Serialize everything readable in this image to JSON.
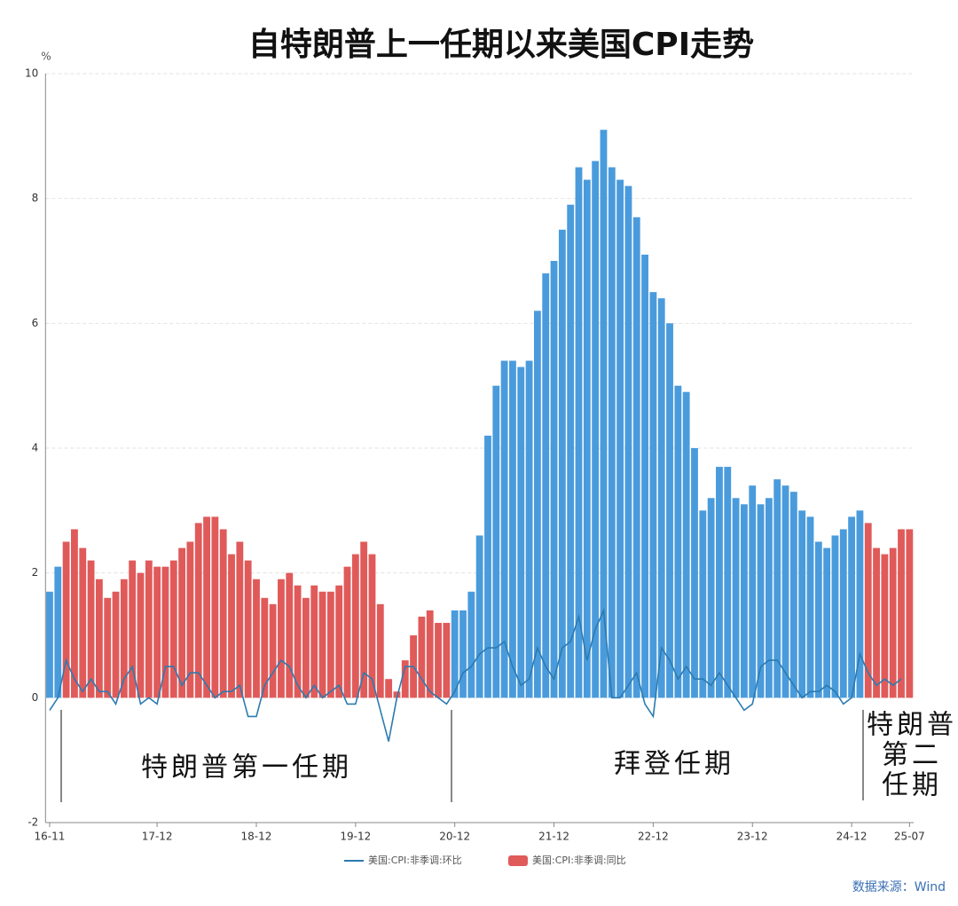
{
  "chart_data": {
    "type": "bar",
    "title": "自特朗普上一任期以来美国CPI走势",
    "y_unit": "%",
    "categories": [
      "16-11",
      null,
      null,
      null,
      null,
      null,
      null,
      null,
      null,
      null,
      null,
      null,
      null,
      "17-12",
      null,
      null,
      null,
      null,
      null,
      null,
      null,
      null,
      null,
      null,
      null,
      "18-12",
      null,
      null,
      null,
      null,
      null,
      null,
      null,
      null,
      null,
      null,
      null,
      "19-12",
      null,
      null,
      null,
      null,
      null,
      null,
      null,
      null,
      null,
      null,
      null,
      "20-12",
      null,
      null,
      null,
      null,
      null,
      null,
      null,
      null,
      null,
      null,
      null,
      "21-12",
      null,
      null,
      null,
      null,
      null,
      null,
      null,
      null,
      null,
      null,
      null,
      "22-12",
      null,
      null,
      null,
      null,
      null,
      null,
      null,
      null,
      null,
      null,
      null,
      "23-12",
      null,
      null,
      null,
      null,
      null,
      null,
      null,
      null,
      null,
      null,
      null,
      "24-12",
      null,
      null,
      null,
      null,
      null,
      null,
      "25-07"
    ],
    "series": [
      {
        "name": "美国:CPI:非季调:环比",
        "type": "line",
        "color": "#2b7bb0",
        "values": [
          -0.2,
          0.0,
          0.6,
          0.3,
          0.1,
          0.3,
          0.1,
          0.1,
          -0.1,
          0.3,
          0.5,
          -0.1,
          0.0,
          -0.1,
          0.5,
          0.5,
          0.2,
          0.4,
          0.4,
          0.2,
          0.0,
          0.1,
          0.1,
          0.2,
          -0.3,
          -0.3,
          0.2,
          0.4,
          0.6,
          0.5,
          0.2,
          0.0,
          0.2,
          0.0,
          0.1,
          0.2,
          -0.1,
          -0.1,
          0.4,
          0.3,
          -0.2,
          -0.7,
          0.0,
          0.5,
          0.5,
          0.3,
          0.1,
          0.0,
          -0.1,
          0.1,
          0.4,
          0.5,
          0.7,
          0.8,
          0.8,
          0.9,
          0.5,
          0.2,
          0.3,
          0.8,
          0.5,
          0.3,
          0.8,
          0.9,
          1.3,
          0.6,
          1.1,
          1.4,
          0.0,
          0.0,
          0.2,
          0.4,
          -0.1,
          -0.3,
          0.8,
          0.6,
          0.3,
          0.5,
          0.3,
          0.3,
          0.2,
          0.4,
          0.2,
          0.0,
          -0.2,
          -0.1,
          0.5,
          0.6,
          0.6,
          0.4,
          0.2,
          0.0,
          0.1,
          0.1,
          0.2,
          0.1,
          -0.1,
          0.0,
          0.7,
          0.4,
          0.2,
          0.3,
          0.2,
          0.3,
          null
        ]
      },
      {
        "name": "美国:CPI:非季调:同比",
        "type": "bar",
        "color": "#e05a5a",
        "values": [
          1.7,
          2.1,
          2.5,
          2.7,
          2.4,
          2.2,
          1.9,
          1.6,
          1.7,
          1.9,
          2.2,
          2.0,
          2.2,
          2.1,
          2.1,
          2.2,
          2.4,
          2.5,
          2.8,
          2.9,
          2.9,
          2.7,
          2.3,
          2.5,
          2.2,
          1.9,
          1.6,
          1.5,
          1.9,
          2.0,
          1.8,
          1.6,
          1.8,
          1.7,
          1.7,
          1.8,
          2.1,
          2.3,
          2.5,
          2.3,
          1.5,
          0.3,
          0.1,
          0.6,
          1.0,
          1.3,
          1.4,
          1.2,
          1.2,
          1.4,
          1.4,
          1.7,
          2.6,
          4.2,
          5.0,
          5.4,
          5.4,
          5.3,
          5.4,
          6.2,
          6.8,
          7.0,
          7.5,
          7.9,
          8.5,
          8.3,
          8.6,
          9.1,
          8.5,
          8.3,
          8.2,
          7.7,
          7.1,
          6.5,
          6.4,
          6.0,
          5.0,
          4.9,
          4.0,
          3.0,
          3.2,
          3.7,
          3.7,
          3.2,
          3.1,
          3.4,
          3.1,
          3.2,
          3.5,
          3.4,
          3.3,
          3.0,
          2.9,
          2.5,
          2.4,
          2.6,
          2.7,
          2.9,
          3.0,
          2.8,
          2.4,
          2.3,
          2.4,
          2.7,
          2.7
        ],
        "bar_colors": [
          "#4a9bdc",
          "#4a9bdc",
          "#e05a5a",
          "#e05a5a",
          "#e05a5a",
          "#e05a5a",
          "#e05a5a",
          "#e05a5a",
          "#e05a5a",
          "#e05a5a",
          "#e05a5a",
          "#e05a5a",
          "#e05a5a",
          "#e05a5a",
          "#e05a5a",
          "#e05a5a",
          "#e05a5a",
          "#e05a5a",
          "#e05a5a",
          "#e05a5a",
          "#e05a5a",
          "#e05a5a",
          "#e05a5a",
          "#e05a5a",
          "#e05a5a",
          "#e05a5a",
          "#e05a5a",
          "#e05a5a",
          "#e05a5a",
          "#e05a5a",
          "#e05a5a",
          "#e05a5a",
          "#e05a5a",
          "#e05a5a",
          "#e05a5a",
          "#e05a5a",
          "#e05a5a",
          "#e05a5a",
          "#e05a5a",
          "#e05a5a",
          "#e05a5a",
          "#e05a5a",
          "#e05a5a",
          "#e05a5a",
          "#e05a5a",
          "#e05a5a",
          "#e05a5a",
          "#e05a5a",
          "#e05a5a",
          "#4a9bdc",
          "#4a9bdc",
          "#4a9bdc",
          "#4a9bdc",
          "#4a9bdc",
          "#4a9bdc",
          "#4a9bdc",
          "#4a9bdc",
          "#4a9bdc",
          "#4a9bdc",
          "#4a9bdc",
          "#4a9bdc",
          "#4a9bdc",
          "#4a9bdc",
          "#4a9bdc",
          "#4a9bdc",
          "#4a9bdc",
          "#4a9bdc",
          "#4a9bdc",
          "#4a9bdc",
          "#4a9bdc",
          "#4a9bdc",
          "#4a9bdc",
          "#4a9bdc",
          "#4a9bdc",
          "#4a9bdc",
          "#4a9bdc",
          "#4a9bdc",
          "#4a9bdc",
          "#4a9bdc",
          "#4a9bdc",
          "#4a9bdc",
          "#4a9bdc",
          "#4a9bdc",
          "#4a9bdc",
          "#4a9bdc",
          "#4a9bdc",
          "#4a9bdc",
          "#4a9bdc",
          "#4a9bdc",
          "#4a9bdc",
          "#4a9bdc",
          "#4a9bdc",
          "#4a9bdc",
          "#4a9bdc",
          "#4a9bdc",
          "#4a9bdc",
          "#4a9bdc",
          "#4a9bdc",
          "#4a9bdc",
          "#e05a5a",
          "#e05a5a",
          "#e05a5a",
          "#e05a5a",
          "#e05a5a",
          "#e05a5a"
        ]
      }
    ],
    "ylim": [
      -2,
      10
    ],
    "yticks": [
      -2,
      0,
      2,
      4,
      6,
      8,
      10
    ],
    "grid": true,
    "legend": "bottom",
    "annotations": [
      {
        "lines": [
          "特朗普第一任期"
        ]
      },
      {
        "lines": [
          "拜登任期"
        ]
      },
      {
        "lines": [
          "特朗普",
          "第二",
          "任期"
        ]
      }
    ],
    "source": "数据来源：Wind"
  }
}
